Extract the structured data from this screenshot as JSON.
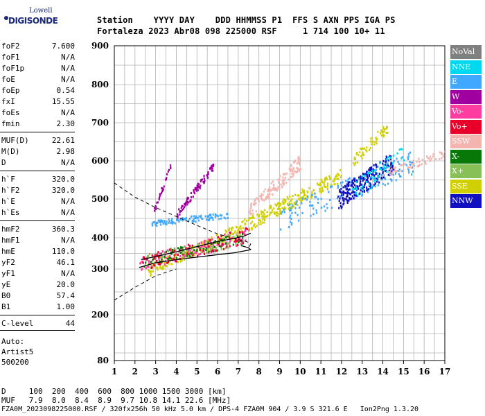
{
  "logo": {
    "line1": "Lowell",
    "line2": "DIGISONDE"
  },
  "header": {
    "line1": "Station    YYYY DAY    DDD HHMMSS P1  FFS S AXN PPS IGA PS",
    "line2": "Fortaleza 2023 Abr08 098 225000 RSF     1 714 100 10+ 11"
  },
  "params": [
    {
      "k": "foF2",
      "v": "7.600"
    },
    {
      "k": "foF1",
      "v": "N/A"
    },
    {
      "k": "foF1p",
      "v": "N/A"
    },
    {
      "k": "foE",
      "v": "N/A"
    },
    {
      "k": "foEp",
      "v": "0.54"
    },
    {
      "k": "fxI",
      "v": "15.55"
    },
    {
      "k": "foEs",
      "v": "N/A"
    },
    {
      "k": "fmin",
      "v": "2.30"
    },
    {
      "k": "MUF(D)",
      "v": "22.61"
    },
    {
      "k": "M(D)",
      "v": "2.98"
    },
    {
      "k": "D",
      "v": "N/A"
    },
    {
      "k": "h`F",
      "v": "320.0"
    },
    {
      "k": "h`F2",
      "v": "320.0"
    },
    {
      "k": "h`E",
      "v": "N/A"
    },
    {
      "k": "h`Es",
      "v": "N/A"
    },
    {
      "k": "hmF2",
      "v": "360.3"
    },
    {
      "k": "hmF1",
      "v": "N/A"
    },
    {
      "k": "hmE",
      "v": "110.0"
    },
    {
      "k": "yF2",
      "v": "46.1"
    },
    {
      "k": "yF1",
      "v": "N/A"
    },
    {
      "k": "yE",
      "v": "20.0"
    },
    {
      "k": "B0",
      "v": "57.4"
    },
    {
      "k": "B1",
      "v": "1.00"
    },
    {
      "k": "C-level",
      "v": "44"
    }
  ],
  "auto": {
    "l1": "Auto:",
    "l2": "Artist5",
    "l3": "500200"
  },
  "legend": [
    {
      "label": "NoVal",
      "color": "#808080"
    },
    {
      "label": "NNE",
      "color": "#00d8f0"
    },
    {
      "label": "E",
      "color": "#40a8ff"
    },
    {
      "label": "W",
      "color": "#a000a0"
    },
    {
      "label": "Vo-",
      "color": "#ff3ca0"
    },
    {
      "label": "Vo+",
      "color": "#e8002a"
    },
    {
      "label": "SSW",
      "color": "#f4b4b0"
    },
    {
      "label": "X-",
      "color": "#087808"
    },
    {
      "label": "X+",
      "color": "#88c058"
    },
    {
      "label": "SSE",
      "color": "#d0d000"
    },
    {
      "label": "NNW",
      "color": "#1010c0"
    }
  ],
  "bottom": {
    "l1": "D     100  200  400  600  800 1000 1500 3000 [km]",
    "l2": "MUF   7.9  8.0  8.4  8.9  9.7 10.8 14.1 22.6 [MHz]",
    "l3": "FZA0M_2023098225000.RSF / 320fx256h 50 kHz 5.0 km / DPS-4 FZA0M 904 / 3.9 S 321.6 E   Ion2Png 1.3.20"
  },
  "chart_data": {
    "type": "scatter",
    "title": "",
    "xlabel": "",
    "ylabel": "",
    "xlim": [
      1,
      17
    ],
    "ylim": [
      80,
      900
    ],
    "xticks": [
      1,
      2,
      3,
      4,
      5,
      6,
      7,
      8,
      9,
      10,
      11,
      12,
      13,
      14,
      15,
      16,
      17
    ],
    "yticks": [
      80,
      200,
      300,
      400,
      500,
      600,
      700,
      800,
      900
    ],
    "grid": true,
    "clusters": [
      {
        "name": "SSE",
        "color": "#d0d000",
        "x_range": [
          2.6,
          12.0
        ],
        "h_start": 300,
        "h_end": 565,
        "thickness": 35,
        "count": 420
      },
      {
        "name": "Vo-",
        "color": "#ff3ca0",
        "x_range": [
          2.2,
          7.5
        ],
        "h_start": 320,
        "h_end": 410,
        "thickness": 45,
        "count": 180
      },
      {
        "name": "X+",
        "color": "#88c058",
        "x_range": [
          2.4,
          7.2
        ],
        "h_start": 330,
        "h_end": 400,
        "thickness": 40,
        "count": 90
      },
      {
        "name": "X-",
        "color": "#087808",
        "x_range": [
          2.4,
          7.2
        ],
        "h_start": 330,
        "h_end": 400,
        "thickness": 40,
        "count": 70
      },
      {
        "name": "Vo+",
        "color": "#e8002a",
        "x_range": [
          2.2,
          7.5
        ],
        "h_start": 320,
        "h_end": 410,
        "thickness": 45,
        "count": 80
      },
      {
        "name": "W",
        "color": "#a000a0",
        "x_range": [
          4.0,
          5.8
        ],
        "h_start": 460,
        "h_end": 590,
        "thickness": 20,
        "count": 90
      },
      {
        "name": "W",
        "color": "#a000a0",
        "x_range": [
          2.9,
          3.7
        ],
        "h_start": 470,
        "h_end": 590,
        "thickness": 15,
        "count": 30
      },
      {
        "name": "E",
        "color": "#40a8ff",
        "x_range": [
          2.8,
          6.5
        ],
        "h_start": 440,
        "h_end": 460,
        "thickness": 15,
        "count": 110
      },
      {
        "name": "E",
        "color": "#40a8ff",
        "x_range": [
          9.0,
          15.5
        ],
        "h_start": 450,
        "h_end": 600,
        "thickness": 60,
        "count": 160
      },
      {
        "name": "SSW",
        "color": "#f4b4b0",
        "x_range": [
          7.5,
          10.0
        ],
        "h_start": 470,
        "h_end": 600,
        "thickness": 40,
        "count": 140
      },
      {
        "name": "NNW",
        "color": "#1010c0",
        "x_range": [
          11.8,
          14.5
        ],
        "h_start": 500,
        "h_end": 600,
        "thickness": 55,
        "count": 230
      },
      {
        "name": "NNE",
        "color": "#00d8f0",
        "x_range": [
          12.5,
          15.0
        ],
        "h_start": 520,
        "h_end": 620,
        "thickness": 50,
        "count": 60
      },
      {
        "name": "SSW",
        "color": "#f4b4b0",
        "x_range": [
          14.0,
          17.0
        ],
        "h_start": 570,
        "h_end": 620,
        "thickness": 20,
        "count": 60
      },
      {
        "name": "SSE",
        "color": "#d0d000",
        "x_range": [
          12.5,
          14.2
        ],
        "h_start": 600,
        "h_end": 690,
        "thickness": 30,
        "count": 60
      }
    ],
    "trace_solid_upper": [
      [
        2.3,
        330
      ],
      [
        3.0,
        340
      ],
      [
        4.0,
        355
      ],
      [
        5.0,
        372
      ],
      [
        6.0,
        388
      ],
      [
        6.8,
        398
      ],
      [
        7.3,
        405
      ],
      [
        7.6,
        412
      ]
    ],
    "profile_solid": [
      [
        2.2,
        305
      ],
      [
        3.0,
        320
      ],
      [
        4.0,
        330
      ],
      [
        5.0,
        338
      ],
      [
        6.0,
        346
      ],
      [
        6.8,
        352
      ],
      [
        7.3,
        358
      ],
      [
        7.6,
        362
      ],
      [
        7.5,
        368
      ],
      [
        7.2,
        374
      ]
    ],
    "profile_dashed": [
      [
        1.0,
        542
      ],
      [
        2.0,
        505
      ],
      [
        3.0,
        478
      ],
      [
        4.0,
        455
      ],
      [
        5.0,
        432
      ],
      [
        6.0,
        410
      ],
      [
        7.0,
        394
      ],
      [
        7.4,
        388
      ],
      [
        7.6,
        380
      ],
      [
        7.5,
        368
      ],
      [
        1.0,
        232
      ],
      [
        2.0,
        260
      ],
      [
        3.0,
        285
      ],
      [
        4.0,
        300
      ]
    ]
  }
}
